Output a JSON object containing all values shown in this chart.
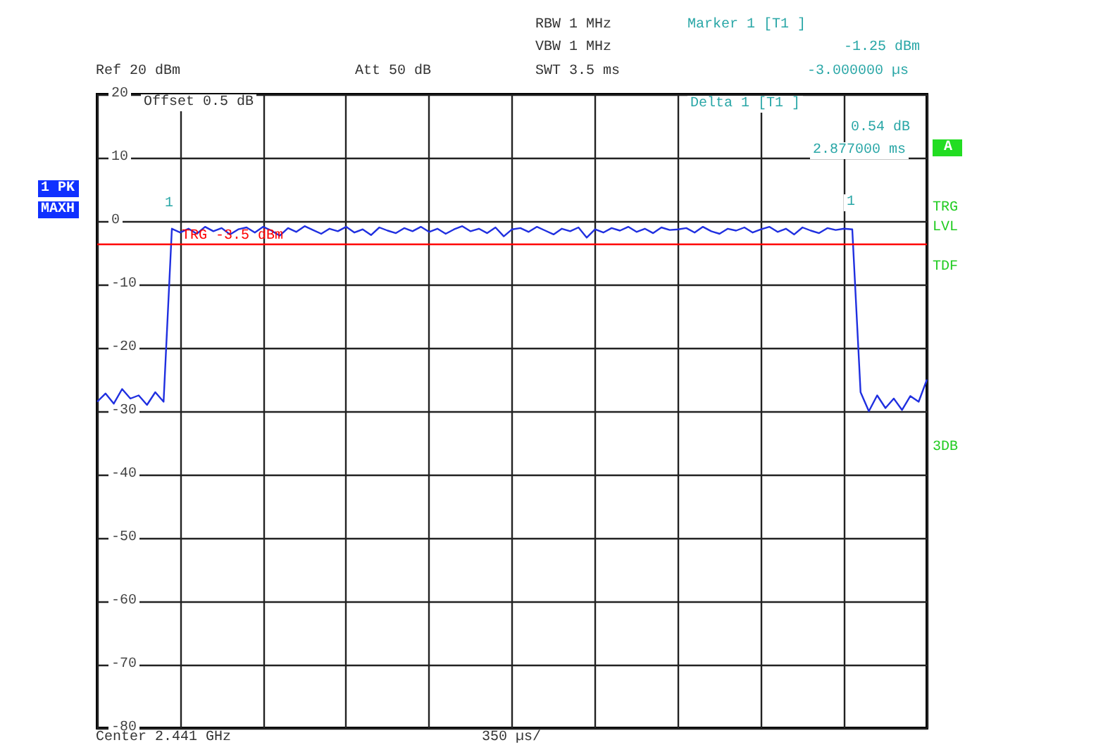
{
  "chart_data": {
    "type": "line",
    "categories": [
      null,
      null,
      null,
      null,
      null,
      null,
      null,
      null,
      null,
      null,
      null,
      null,
      null,
      null,
      null,
      null,
      null,
      null,
      null,
      null,
      null,
      null,
      null,
      null,
      null,
      null,
      null,
      null,
      null,
      null,
      null,
      null,
      null,
      null,
      null,
      null,
      null,
      null,
      null,
      null,
      null,
      null,
      null,
      null,
      null,
      null,
      null,
      null,
      null,
      null,
      null,
      null,
      null,
      null,
      null,
      null,
      null,
      null,
      null,
      null,
      null,
      null,
      null,
      null,
      null,
      null,
      null,
      null,
      null,
      null,
      null,
      null,
      null,
      null,
      null,
      null,
      null,
      null,
      null,
      null,
      null,
      null,
      null,
      null,
      null,
      null,
      null,
      null,
      null,
      null,
      null,
      null,
      null,
      null,
      null,
      null,
      null,
      null,
      null,
      null,
      null
    ],
    "series": [
      {
        "color": "#1f2fe0",
        "values": [
          -28.5,
          -27.2,
          -28.8,
          -26.5,
          -28,
          -27.5,
          -29,
          -27,
          -28.5,
          -1.2,
          -1.8,
          -1.2,
          -2,
          -0.9,
          -1.6,
          -1.1,
          -2.1,
          -1.3,
          -1,
          -1.8,
          -0.9,
          -1.5,
          -2.3,
          -1.1,
          -1.7,
          -0.8,
          -1.4,
          -2,
          -1.2,
          -1.6,
          -0.9,
          -1.8,
          -1.3,
          -2.2,
          -1,
          -1.5,
          -1.9,
          -1.1,
          -1.6,
          -0.9,
          -1.7,
          -1.2,
          -2,
          -1.3,
          -0.8,
          -1.6,
          -1.2,
          -1.9,
          -1,
          -2.4,
          -1.3,
          -1.1,
          -1.7,
          -0.9,
          -1.5,
          -2.1,
          -1.2,
          -1.6,
          -1,
          -2.6,
          -1.3,
          -1.8,
          -1.1,
          -1.5,
          -0.9,
          -1.7,
          -1.2,
          -1.9,
          -1,
          -1.4,
          -1.3,
          -1.1,
          -1.8,
          -0.9,
          -1.6,
          -2,
          -1.2,
          -1.5,
          -1,
          -1.8,
          -1.3,
          -0.9,
          -1.7,
          -1.2,
          -2.1,
          -1,
          -1.5,
          -1.9,
          -1.1,
          -1.4,
          -1.2,
          -1.3,
          -27,
          -30,
          -27.5,
          -29.5,
          -28,
          -29.8,
          -27.6,
          -28.5,
          -25
        ]
      }
    ],
    "ylim": [
      -80,
      20
    ],
    "yticks": [
      20,
      10,
      0,
      -10,
      -20,
      -30,
      -40,
      -50,
      -60,
      -70,
      -80
    ],
    "tick_labels": "y",
    "grid": true,
    "line_style": "solid",
    "ref_lines": [
      {
        "axis": "y",
        "value": -3.5,
        "label": "TRG -3.5 dBm",
        "color": "#ff0000"
      }
    ],
    "annotations": [
      "RBW 1 MHz",
      "VBW 1 MHz",
      "SWT 3.5 ms",
      "Ref 20 dBm",
      "Att 50 dB",
      "Marker 1 [T1 ]",
      "-1.25 dBm",
      "-3.000000 µs",
      "Offset 0.5 dB",
      "Delta 1 [T1 ]",
      "0.54 dB",
      "2.877000 ms",
      "Center 2.441 GHz",
      "350 µs/",
      "TRG",
      "LVL",
      "TDF",
      "3DB",
      "A",
      "1 PK",
      "MAXH",
      "1",
      "1"
    ]
  }
}
